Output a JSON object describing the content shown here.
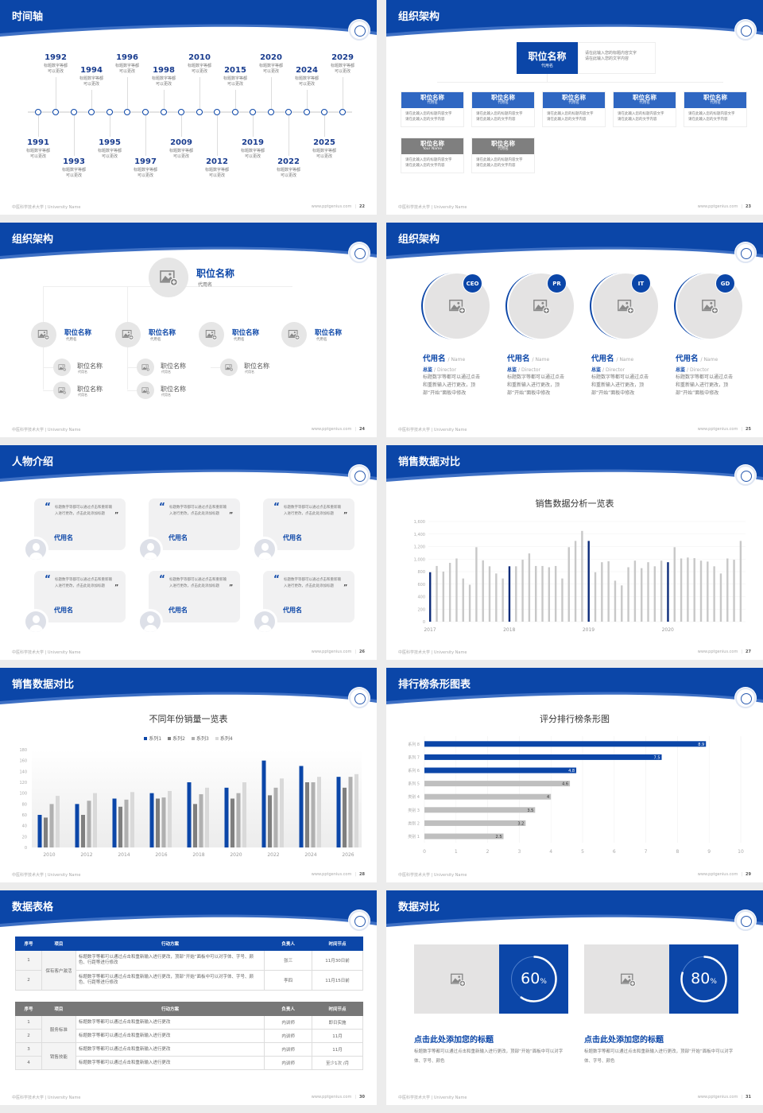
{
  "footer": {
    "left": "中医科学技术大学 | University Name",
    "url": "www.pptgenius.com"
  },
  "colors": {
    "primary": "#0b46a8",
    "navy": "#0d2c7a",
    "gray_bar": "#c8c8c8",
    "gray_header": "#7f7f7f",
    "light_blue": "#2f67c2"
  },
  "slides": [
    {
      "title": "时间轴",
      "page": "22",
      "timeline": [
        {
          "year": "1991",
          "desc": "标题数字等都可以更改"
        },
        {
          "year": "1992",
          "desc": "标题数字等都可以更改"
        },
        {
          "year": "1993",
          "desc": "标题数字等都可以更改"
        },
        {
          "year": "1994",
          "desc": "标题数字等都可以更改"
        },
        {
          "year": "1995",
          "desc": "标题数字等都可以更改"
        },
        {
          "year": "1996",
          "desc": "标题数字等都可以更改"
        },
        {
          "year": "1997",
          "desc": "标题数字等都可以更改"
        },
        {
          "year": "1998",
          "desc": "标题数字等都可以更改"
        },
        {
          "year": "2009",
          "desc": "标题数字等都可以更改"
        },
        {
          "year": "2010",
          "desc": "标题数字等都可以更改"
        },
        {
          "year": "2012",
          "desc": "标题数字等都可以更改"
        },
        {
          "year": "2015",
          "desc": "标题数字等都可以更改"
        },
        {
          "year": "2019",
          "desc": "标题数字等都可以更改"
        },
        {
          "year": "2020",
          "desc": "标题数字等都可以更改"
        },
        {
          "year": "2022",
          "desc": "标题数字等都可以更改"
        },
        {
          "year": "2024",
          "desc": "标题数字等都可以更改"
        },
        {
          "year": "2025",
          "desc": "标题数字等都可以更改"
        },
        {
          "year": "2029",
          "desc": "标题数字等都可以更改"
        }
      ]
    },
    {
      "title": "组织架构",
      "page": "23",
      "top": {
        "title": "职位名称",
        "sub": "代用名",
        "lines": [
          "请在此输入您的标题内容文字",
          "请在此输入您的文字内容"
        ]
      },
      "children": [
        {
          "title": "职位名称",
          "sub": "代用名",
          "lines": [
            "请在此输入您的标题内容文字",
            "请在此输入您的文字内容"
          ],
          "gray": false
        },
        {
          "title": "职位名称",
          "sub": "代用名",
          "lines": [
            "请在此输入您的标题内容文字",
            "请在此输入您的文字内容"
          ],
          "gray": false
        },
        {
          "title": "职位名称",
          "sub": "代用名",
          "lines": [
            "请在此输入您的标题内容文字",
            "请在此输入您的文字内容"
          ],
          "gray": false
        },
        {
          "title": "职位名称",
          "sub": "代用名",
          "lines": [
            "请在此输入您的标题内容文字",
            "请在此输入您的文字内容"
          ],
          "gray": false
        },
        {
          "title": "职位名称",
          "sub": "代用名",
          "lines": [
            "请在此输入您的标题内容文字",
            "请在此输入您的文字内容"
          ],
          "gray": false
        },
        {
          "title": "职位名称",
          "sub": "Your Name",
          "lines": [
            "请在此输入您的标题内容文字",
            "请在此输入您的文字内容"
          ],
          "gray": true
        },
        {
          "title": "职位名称",
          "sub": "代用名",
          "lines": [
            "请在此输入您的标题内容文字",
            "请在此输入您的文字内容"
          ],
          "gray": true
        }
      ]
    },
    {
      "title": "组织架构",
      "page": "24",
      "top": {
        "title": "职位名称",
        "sub": "代用名"
      },
      "level2": [
        {
          "title": "职位名称",
          "sub": "代用名"
        },
        {
          "title": "职位名称",
          "sub": "代用名"
        },
        {
          "title": "职位名称",
          "sub": "代用名"
        },
        {
          "title": "职位名称",
          "sub": "代用名"
        }
      ],
      "level3": [
        {
          "title": "职位名称",
          "sub": "代用名"
        },
        {
          "title": "职位名称",
          "sub": "代用名"
        },
        {
          "title": "职位名称",
          "sub": "代用名"
        },
        {
          "title": "职位名称",
          "sub": "代用名"
        },
        {
          "title": "职位名称",
          "sub": "代用名"
        }
      ]
    },
    {
      "title": "组织架构",
      "page": "25",
      "people": [
        {
          "badge": "CEO",
          "name": "代用名",
          "name_en": "/ Name",
          "role": "总监",
          "role_en": "/  Director",
          "desc": "标题数字等都可以通过点击和重新输入进行更改，顶部“开始”面板中修改"
        },
        {
          "badge": "PR",
          "name": "代用名",
          "name_en": "/ Name",
          "role": "总监",
          "role_en": "/  Director",
          "desc": "标题数字等都可以通过点击和重新输入进行更改，顶部“开始”面板中修改"
        },
        {
          "badge": "IT",
          "name": "代用名",
          "name_en": "/ Name",
          "role": "总监",
          "role_en": "/  Director",
          "desc": "标题数字等都可以通过点击和重新输入进行更改，顶部“开始”面板中修改"
        },
        {
          "badge": "GD",
          "name": "代用名",
          "name_en": "/ Name",
          "role": "总监",
          "role_en": "/  Director",
          "desc": "标题数字等都可以通过点击和重新输入进行更改，顶部“开始”面板中修改"
        }
      ]
    },
    {
      "title": "人物介绍",
      "page": "26",
      "cards": [
        {
          "quote": "标题数字等都可以通过点击和重新输入进行更改，点击此处添加标题",
          "name": "代用名"
        },
        {
          "quote": "标题数字等都可以通过点击和重新输入进行更改，点击此处添加标题",
          "name": "代用名"
        },
        {
          "quote": "标题数字等都可以通过点击和重新输入进行更改，点击此处添加标题",
          "name": "代用名"
        },
        {
          "quote": "标题数字等都可以通过点击和重新输入进行更改，点击此处添加标题",
          "name": "代用名"
        },
        {
          "quote": "标题数字等都可以通过点击和重新输入进行更改，点击此处添加标题",
          "name": "代用名"
        },
        {
          "quote": "标题数字等都可以通过点击和重新输入进行更改，点击此处添加标题",
          "name": "代用名"
        }
      ]
    },
    {
      "title": "销售数据对比",
      "page": "27"
    },
    {
      "title": "销售数据对比",
      "page": "28"
    },
    {
      "title": "排行榜条形图表",
      "page": "29"
    },
    {
      "title": "数据表格",
      "page": "30",
      "table1": {
        "headers": [
          "序号",
          "项目",
          "行动方案",
          "负责人",
          "时间节点"
        ],
        "group": "保有客户激活",
        "rows": [
          {
            "no": "1",
            "plan": "标题数字等都可以通过点击和重新输入进行更改，顶部“开始”面板中可以对字体、字号、颜色、行距等进行修改",
            "owner": "张三",
            "time": "11月30日前"
          },
          {
            "no": "2",
            "plan": "标题数字等都可以通过点击和重新输入进行更改，顶部“开始”面板中可以对字体、字号、颜色、行距等进行修改",
            "owner": "李四",
            "time": "11月15日前"
          }
        ]
      },
      "table2": {
        "headers": [
          "序号",
          "项目",
          "行动方案",
          "负责人",
          "时间节点"
        ],
        "groups": [
          "服务标准",
          "销售技能"
        ],
        "rows": [
          {
            "no": "1",
            "plan": "标题数字等都可以通过点击和重新输入进行更改",
            "owner": "内训师",
            "time": "即日实施"
          },
          {
            "no": "2",
            "plan": "标题数字等都可以通过点击和重新输入进行更改",
            "owner": "内训师",
            "time": "11月"
          },
          {
            "no": "3",
            "plan": "标题数字等都可以通过点击和重新输入进行更改",
            "owner": "内训师",
            "time": "11月"
          },
          {
            "no": "4",
            "plan": "标题数字等都可以通过点击和重新输入进行更改",
            "owner": "内训师",
            "time": "至少1次 /月"
          }
        ]
      }
    },
    {
      "title": "数据对比",
      "page": "31",
      "items": [
        {
          "percent": 60,
          "value": "60",
          "unit": "%",
          "title": "点击此处添加您的标题",
          "desc": "标题数字等都可以通过点击和重新输入进行更改，顶部“开始”面板中可以对字体、字号、颜色"
        },
        {
          "percent": 80,
          "value": "80",
          "unit": "%",
          "title": "点击此处添加您的标题",
          "desc": "标题数字等都可以通过点击和重新输入进行更改，顶部“开始”面板中可以对字体、字号、颜色"
        }
      ]
    }
  ],
  "chart_data": [
    {
      "type": "bar",
      "title": "销售数据分析一览表",
      "x_tick_labels": [
        "2017",
        "2018",
        "2019",
        "2020"
      ],
      "values": [
        790,
        890,
        800,
        940,
        1010,
        690,
        590,
        1190,
        980,
        885,
        770,
        690,
        885,
        885,
        990,
        1090,
        890,
        890,
        870,
        890,
        690,
        1190,
        1290,
        1450,
        1290,
        790,
        950,
        965,
        655,
        580,
        870,
        975,
        855,
        950,
        885,
        975,
        950,
        1190,
        1010,
        1025,
        1015,
        975,
        960,
        885,
        770,
        1010,
        990,
        1290
      ],
      "highlighted_indices": [
        0,
        12,
        24,
        36
      ],
      "ylim": [
        0,
        1600
      ],
      "y_tick_labels": [
        "0",
        "200",
        "400",
        "600",
        "800",
        "1,000",
        "1,200",
        "1,400",
        "1,600"
      ],
      "grid": true
    },
    {
      "type": "bar",
      "title": "不同年份销量一览表",
      "categories": [
        "2010",
        "2012",
        "2014",
        "2016",
        "2018",
        "2020",
        "2022",
        "2024",
        "2026"
      ],
      "series": [
        {
          "name": "系列1",
          "color": "#0b46a8",
          "values": [
            60,
            80,
            90,
            100,
            120,
            110,
            160,
            150,
            130
          ]
        },
        {
          "name": "系列2",
          "color": "#7f7f7f",
          "values": [
            55,
            60,
            75,
            90,
            80,
            90,
            96,
            120,
            110
          ]
        },
        {
          "name": "系列3",
          "color": "#b0b0b0",
          "values": [
            80,
            86,
            88,
            92,
            98,
            100,
            110,
            120,
            130
          ]
        },
        {
          "name": "系列4",
          "color": "#d9d9d9",
          "values": [
            95,
            100,
            102,
            104,
            110,
            120,
            127,
            130,
            135
          ]
        }
      ],
      "ylim": [
        0,
        180
      ],
      "y_tick_labels": [
        "0",
        "20",
        "40",
        "60",
        "80",
        "100",
        "120",
        "140",
        "160",
        "180"
      ],
      "legend": "top"
    },
    {
      "type": "bar",
      "orientation": "horizontal",
      "title": "评分排行榜条形图",
      "categories": [
        "类别 1",
        "类别 2",
        "类别 3",
        "类别 4",
        "系列 5",
        "系列 6",
        "系列 7",
        "系列 8"
      ],
      "values": [
        2.5,
        3.2,
        3.5,
        4,
        4.6,
        4.8,
        7.5,
        8.9
      ],
      "data_labels": [
        "2.5",
        "3.2",
        "3.5",
        "4",
        "4.6",
        "4.8",
        "7.5",
        "8.9"
      ],
      "highlighted_indices": [
        5,
        6,
        7
      ],
      "xlim": [
        0,
        10
      ],
      "x_tick_labels": [
        "0",
        "1",
        "2",
        "3",
        "4",
        "5",
        "6",
        "7",
        "8",
        "9",
        "10"
      ],
      "grid": true
    }
  ]
}
